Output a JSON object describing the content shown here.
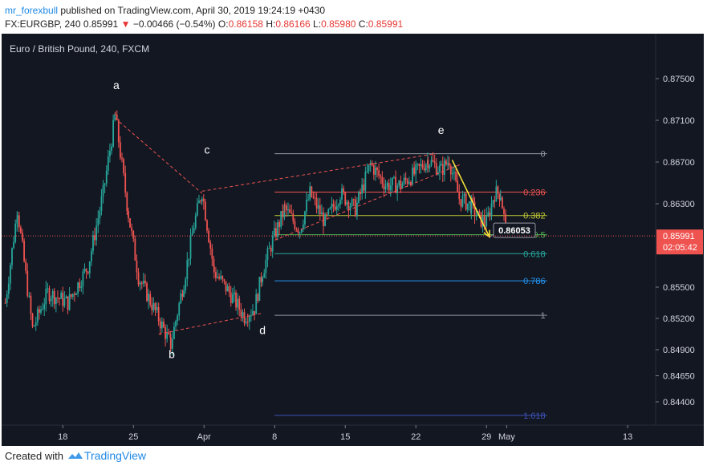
{
  "header": {
    "author": "mr_forexbull",
    "published_text": "published on TradingView.com, April 30, 2019 19:24:19 +0430",
    "symbol": "FX:EURGBP, 240",
    "last": "0.85991",
    "change": "−0.00466 (−0.54%)",
    "o_label": "O:",
    "o_value": "0.86158",
    "h_label": "H:",
    "h_value": "0.86166",
    "l_label": "L:",
    "l_value": "0.85980",
    "c_label": "C:",
    "c_value": "0.85991"
  },
  "chart_title": "Euro / British Pound, 240, FXCM",
  "footer": {
    "created_with": "Created with",
    "brand": "TradingView"
  },
  "colors": {
    "background": "#131722",
    "up": "#26a69a",
    "down": "#ef5350",
    "text": "#d1d4dc"
  },
  "chart_data": {
    "type": "candlestick",
    "symbol": "EURGBP",
    "timeframe": "240",
    "y_ticks": [
      0.875,
      0.871,
      0.867,
      0.863,
      0.855,
      0.852,
      0.849,
      0.8465,
      0.844
    ],
    "y_tick_labels": [
      "0.87500",
      "0.87100",
      "0.86700",
      "0.86300",
      "0.85500",
      "0.85200",
      "0.84900",
      "0.84650",
      "0.84400"
    ],
    "x_ticks": [
      {
        "label": "18",
        "day": 18
      },
      {
        "label": "25",
        "day": 25
      },
      {
        "label": "Apr",
        "day": 32
      },
      {
        "label": "8",
        "day": 39
      },
      {
        "label": "15",
        "day": 46
      },
      {
        "label": "22",
        "day": 53
      },
      {
        "label": "29",
        "day": 60
      },
      {
        "label": "May",
        "day": 62
      },
      {
        "label": "13",
        "day": 74
      }
    ],
    "last_price_label": "0.85991",
    "countdown_label": "02:05:42",
    "callout_price": "0.86053",
    "path_points": [
      {
        "d": 12.3,
        "p": 0.8535
      },
      {
        "d": 13.5,
        "p": 0.8625
      },
      {
        "d": 15.0,
        "p": 0.851
      },
      {
        "d": 16.5,
        "p": 0.8545
      },
      {
        "d": 18.5,
        "p": 0.8535
      },
      {
        "d": 20.5,
        "p": 0.857
      },
      {
        "d": 22.0,
        "p": 0.864
      },
      {
        "d": 23.2,
        "p": 0.8715
      },
      {
        "d": 24.5,
        "p": 0.862
      },
      {
        "d": 25.5,
        "p": 0.856
      },
      {
        "d": 27.5,
        "p": 0.852
      },
      {
        "d": 28.7,
        "p": 0.8495
      },
      {
        "d": 30.0,
        "p": 0.8555
      },
      {
        "d": 31.0,
        "p": 0.861
      },
      {
        "d": 31.8,
        "p": 0.8642
      },
      {
        "d": 33.0,
        "p": 0.8565
      },
      {
        "d": 34.5,
        "p": 0.8545
      },
      {
        "d": 36.0,
        "p": 0.8522
      },
      {
        "d": 37.0,
        "p": 0.853
      },
      {
        "d": 37.8,
        "p": 0.8565
      },
      {
        "d": 38.8,
        "p": 0.8595
      },
      {
        "d": 40.0,
        "p": 0.8625
      },
      {
        "d": 41.5,
        "p": 0.8605
      },
      {
        "d": 42.5,
        "p": 0.864
      },
      {
        "d": 44.0,
        "p": 0.8612
      },
      {
        "d": 45.5,
        "p": 0.864
      },
      {
        "d": 47.0,
        "p": 0.8625
      },
      {
        "d": 48.5,
        "p": 0.8668
      },
      {
        "d": 50.0,
        "p": 0.8648
      },
      {
        "d": 51.5,
        "p": 0.8648
      },
      {
        "d": 53.0,
        "p": 0.866
      },
      {
        "d": 54.2,
        "p": 0.8672
      },
      {
        "d": 55.5,
        "p": 0.8662
      },
      {
        "d": 56.3,
        "p": 0.8672
      },
      {
        "d": 57.3,
        "p": 0.8635
      },
      {
        "d": 58.5,
        "p": 0.8628
      },
      {
        "d": 59.3,
        "p": 0.8615
      },
      {
        "d": 60.0,
        "p": 0.8612
      },
      {
        "d": 60.8,
        "p": 0.864
      },
      {
        "d": 61.4,
        "p": 0.864
      },
      {
        "d": 62.0,
        "p": 0.8599
      }
    ],
    "fibonacci": {
      "start_day": 39.0,
      "end_day": 66.0,
      "levels": [
        {
          "label": "0",
          "price": 0.8678,
          "color": "#9598a1"
        },
        {
          "label": "0.236",
          "price": 0.86412,
          "color": "#ef5350"
        },
        {
          "label": "0.382",
          "price": 0.86187,
          "color": "#c0ca33"
        },
        {
          "label": "0.5",
          "price": 0.86003,
          "color": "#4caf50"
        },
        {
          "label": "0.618",
          "price": 0.85821,
          "color": "#26a69a"
        },
        {
          "label": "0.786",
          "price": 0.85561,
          "color": "#2196f3"
        },
        {
          "label": "1",
          "price": 0.8523,
          "color": "#9598a1"
        },
        {
          "label": "1.618",
          "price": 0.8427,
          "color": "#3f51b5"
        }
      ]
    },
    "wave_labels": [
      {
        "text": "a",
        "day": 23.3,
        "price": 0.874
      },
      {
        "text": "b",
        "day": 28.8,
        "price": 0.8482
      },
      {
        "text": "c",
        "day": 32.3,
        "price": 0.8678
      },
      {
        "text": "d",
        "day": 37.8,
        "price": 0.8505
      },
      {
        "text": "e",
        "day": 55.5,
        "price": 0.8697
      }
    ],
    "trendlines": [
      {
        "from": {
          "day": 23.2,
          "price": 0.8712
        },
        "to": {
          "day": 31.8,
          "price": 0.864
        }
      },
      {
        "from": {
          "day": 27.5,
          "price": 0.8505
        },
        "to": {
          "day": 37.8,
          "price": 0.8525
        }
      },
      {
        "from": {
          "day": 31.8,
          "price": 0.8642
        },
        "to": {
          "day": 55.0,
          "price": 0.8678
        }
      },
      {
        "from": {
          "day": 39.0,
          "price": 0.8595
        },
        "to": {
          "day": 57.5,
          "price": 0.8668
        }
      }
    ],
    "arrow": {
      "from": {
        "day": 56.6,
        "price": 0.8672
      },
      "to": {
        "day": 60.3,
        "price": 0.8598
      },
      "color": "#ffeb3b"
    }
  }
}
